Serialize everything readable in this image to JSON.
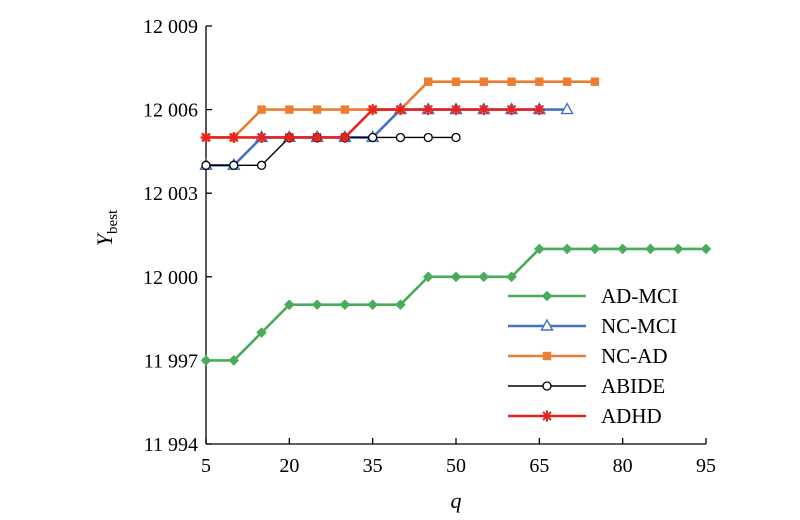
{
  "chart_data": {
    "type": "line",
    "xlabel": "q",
    "ylabel": "Y",
    "ylabel_sub": "best",
    "xlim": [
      5,
      95
    ],
    "ylim": [
      11994,
      12009
    ],
    "xticks": [
      5,
      20,
      35,
      50,
      65,
      80,
      95
    ],
    "yticks": [
      11994,
      11997,
      12000,
      12003,
      12006,
      12009
    ],
    "ytick_labels": [
      "11 994",
      "11 997",
      "12 000",
      "12 003",
      "12 006",
      "12 009"
    ],
    "grid": false,
    "legend_position": "bottom-right",
    "series": [
      {
        "name": "AD-MCI",
        "color": "#4aac5a",
        "marker": "diamond",
        "x": [
          5,
          10,
          15,
          20,
          25,
          30,
          35,
          40,
          45,
          50,
          55,
          60,
          65,
          70,
          75,
          80,
          85,
          90,
          95
        ],
        "y": [
          11997,
          11997,
          11998,
          11999,
          11999,
          11999,
          11999,
          11999,
          12000,
          12000,
          12000,
          12000,
          12001,
          12001,
          12001,
          12001,
          12001,
          12001,
          12001
        ]
      },
      {
        "name": "NC-MCI",
        "color": "#4472c4",
        "marker": "triangle-open",
        "x": [
          5,
          10,
          15,
          20,
          25,
          30,
          35,
          40,
          45,
          50,
          55,
          60,
          65,
          70
        ],
        "y": [
          12004,
          12004,
          12005,
          12005,
          12005,
          12005,
          12005,
          12006,
          12006,
          12006,
          12006,
          12006,
          12006,
          12006
        ]
      },
      {
        "name": "NC-AD",
        "color": "#ed7d31",
        "marker": "square",
        "x": [
          5,
          10,
          15,
          20,
          25,
          30,
          35,
          40,
          45,
          50,
          55,
          60,
          65,
          70,
          75
        ],
        "y": [
          12005,
          12005,
          12006,
          12006,
          12006,
          12006,
          12006,
          12006,
          12007,
          12007,
          12007,
          12007,
          12007,
          12007,
          12007
        ]
      },
      {
        "name": "ABIDE",
        "color": "#000000",
        "marker": "circle-open",
        "x": [
          5,
          10,
          15,
          20,
          25,
          30,
          35,
          40,
          45,
          50
        ],
        "y": [
          12004,
          12004,
          12004,
          12005,
          12005,
          12005,
          12005,
          12005,
          12005,
          12005
        ]
      },
      {
        "name": "ADHD",
        "color": "#e8231f",
        "marker": "asterisk",
        "x": [
          5,
          10,
          15,
          20,
          25,
          30,
          35,
          40,
          45,
          50,
          55,
          60,
          65
        ],
        "y": [
          12005,
          12005,
          12005,
          12005,
          12005,
          12005,
          12006,
          12006,
          12006,
          12006,
          12006,
          12006,
          12006
        ]
      }
    ]
  }
}
